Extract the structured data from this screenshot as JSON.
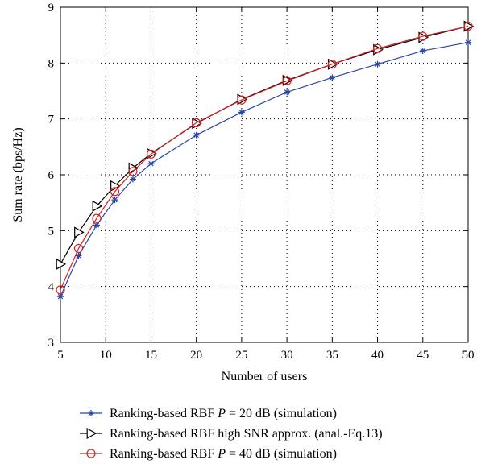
{
  "chart_data": {
    "type": "line",
    "xlabel": "Number of users",
    "ylabel": "Sum rate (bps/Hz)",
    "xlim": [
      5,
      50
    ],
    "ylim": [
      3,
      9
    ],
    "xticks": [
      5,
      10,
      15,
      20,
      25,
      30,
      35,
      40,
      45,
      50
    ],
    "yticks": [
      3,
      4,
      5,
      6,
      7,
      8,
      9
    ],
    "grid": true,
    "legend_position": "below",
    "x": [
      5,
      7,
      9,
      11,
      13,
      15,
      20,
      25,
      30,
      35,
      40,
      45,
      50
    ],
    "series": [
      {
        "legend": [
          "Ranking-based RBF ",
          "P",
          " = 20 dB (simulation)"
        ],
        "color": "#2a45a8",
        "marker": "asterisk",
        "values": [
          3.82,
          4.55,
          5.1,
          5.55,
          5.92,
          6.2,
          6.71,
          7.12,
          7.48,
          7.74,
          7.98,
          8.22,
          8.37
        ]
      },
      {
        "legend": [
          "Ranking-based RBF high SNR approx. (anal.-Eq.13)"
        ],
        "color": "#000000",
        "marker": "triangle-right",
        "values": [
          4.4,
          4.97,
          5.44,
          5.8,
          6.12,
          6.38,
          6.92,
          7.35,
          7.69,
          7.98,
          8.24,
          8.46,
          8.66
        ]
      },
      {
        "legend": [
          "Ranking-based RBF ",
          "P",
          " = 40 dB (simulation)"
        ],
        "color": "#d42020",
        "marker": "circle",
        "values": [
          3.94,
          4.68,
          5.22,
          5.7,
          6.06,
          6.37,
          6.93,
          7.34,
          7.68,
          7.98,
          8.26,
          8.48,
          8.66
        ]
      }
    ]
  }
}
